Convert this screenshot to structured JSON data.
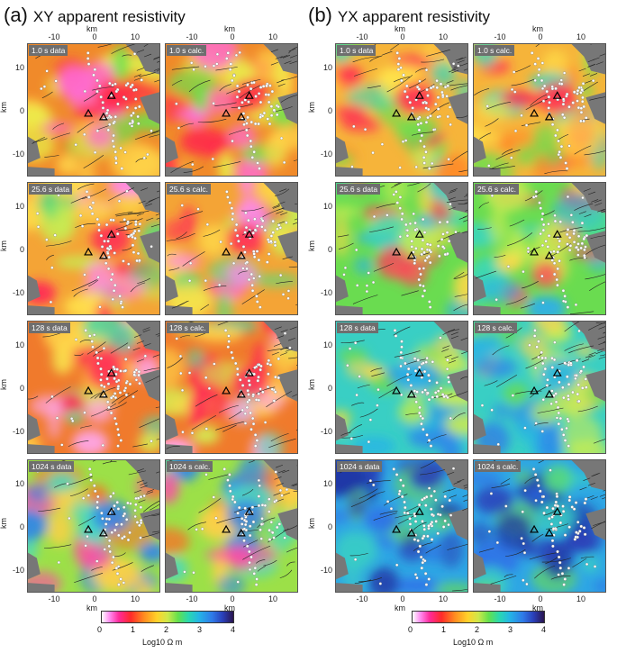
{
  "panels": [
    {
      "label": "(a)",
      "title": "XY apparent resistivity",
      "cmap": "xy"
    },
    {
      "label": "(b)",
      "title": "YX apparent resistivity",
      "cmap": "yx"
    }
  ],
  "rows": [
    {
      "data": "1.0 s data",
      "calc": "1.0 s calc."
    },
    {
      "data": "25.6 s data",
      "calc": "25.6 s calc."
    },
    {
      "data": "128 s data",
      "calc": "128 s calc."
    },
    {
      "data": "1024 s data",
      "calc": "1024 s calc."
    }
  ],
  "axes": {
    "x_ticks": [
      "-10",
      "0",
      "10"
    ],
    "y_ticks": [
      "10",
      "0",
      "-10"
    ],
    "unit": "km"
  },
  "colorbar": {
    "ticks": [
      "0",
      "1",
      "2",
      "3",
      "4"
    ],
    "label": "Log10 Ω m"
  }
}
